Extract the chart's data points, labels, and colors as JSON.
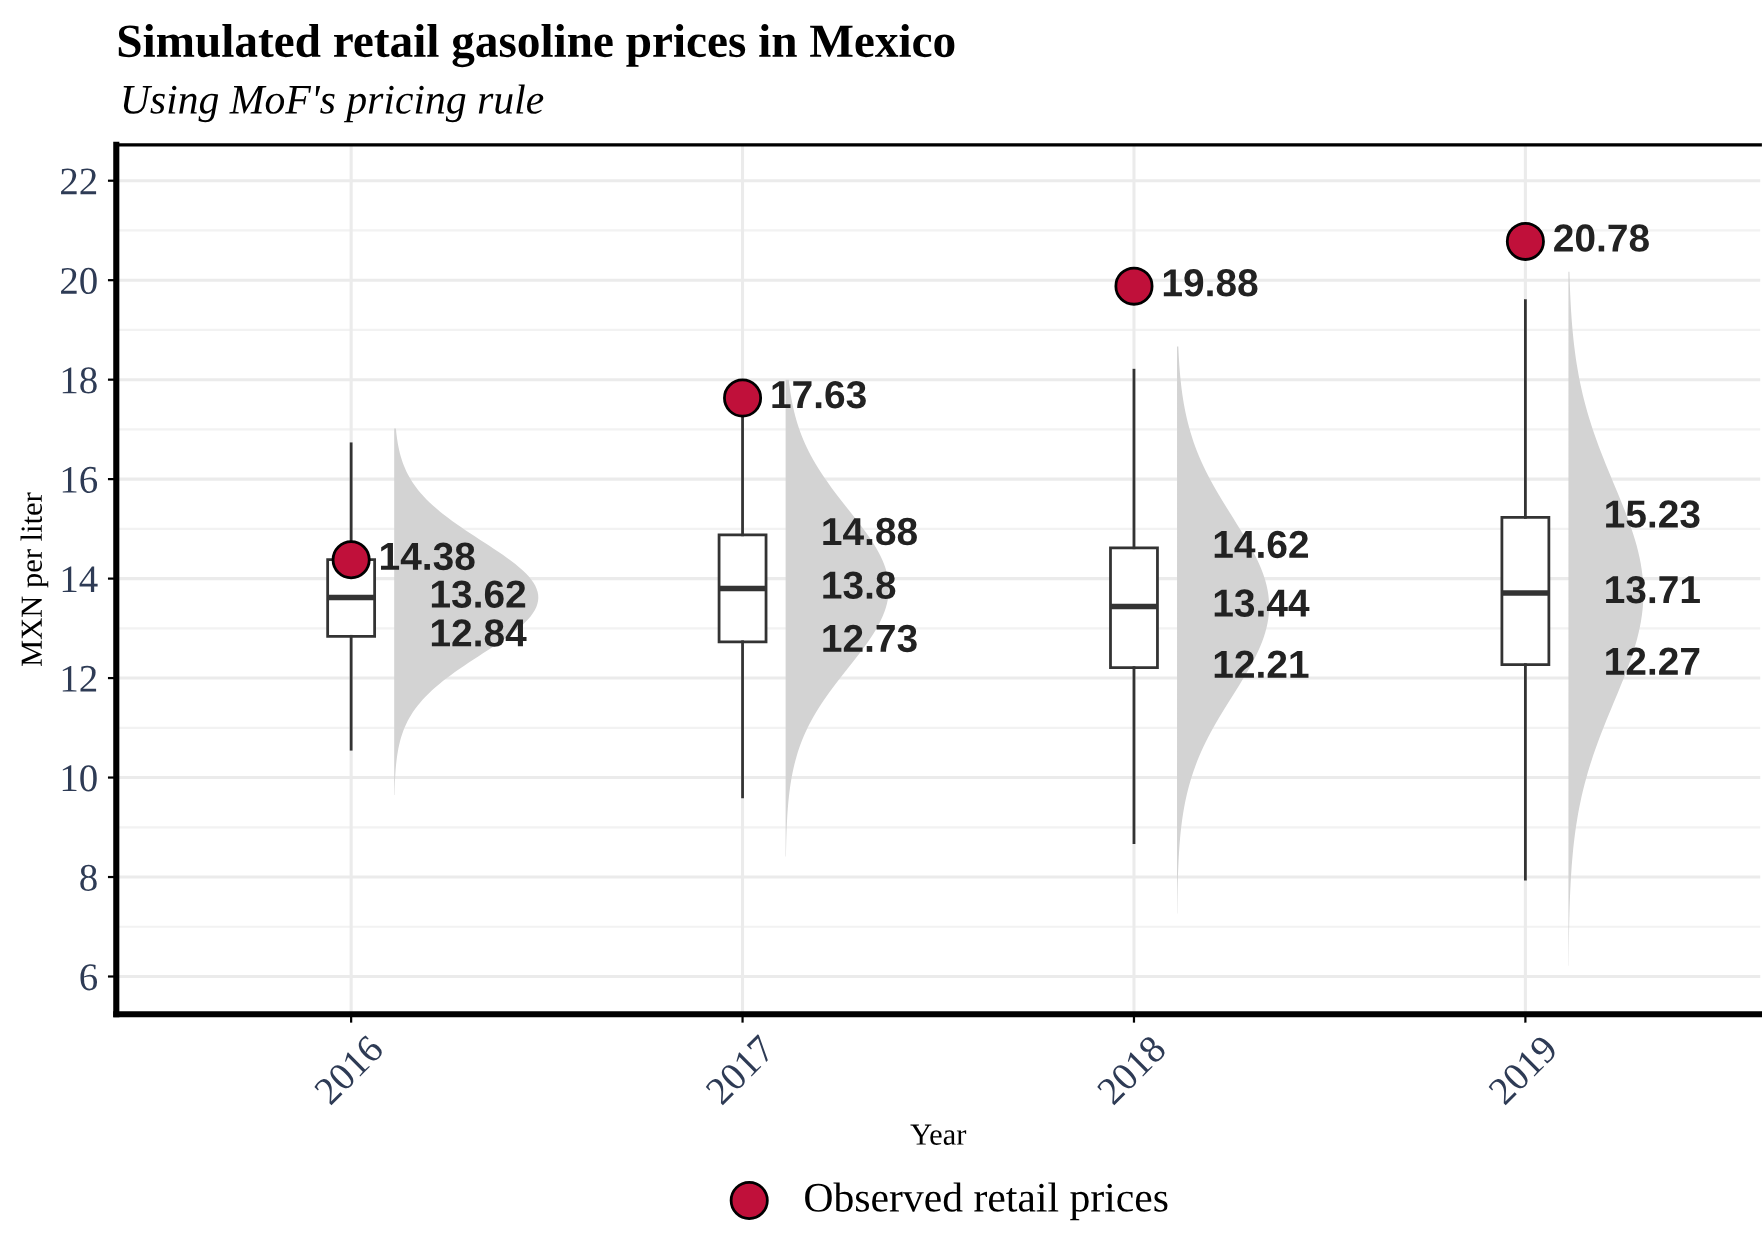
{
  "chart_data": {
    "type": "box",
    "title": "Simulated retail gasoline prices in Mexico",
    "subtitle": "Using MoF's pricing rule",
    "xlabel": "Year",
    "ylabel": "MXN per liter",
    "categories": [
      "2016",
      "2017",
      "2018",
      "2019"
    ],
    "boxes": [
      {
        "low": 10.57,
        "q1": 12.84,
        "median": 13.62,
        "q3": 14.38,
        "high": 16.71
      },
      {
        "low": 9.61,
        "q1": 12.73,
        "median": 13.8,
        "q3": 14.88,
        "high": 17.6
      },
      {
        "low": 8.69,
        "q1": 12.21,
        "median": 13.44,
        "q3": 14.62,
        "high": 18.19
      },
      {
        "low": 7.96,
        "q1": 12.27,
        "median": 13.71,
        "q3": 15.23,
        "high": 19.59
      }
    ],
    "series": [
      {
        "name": "Observed retail prices",
        "type": "scatter",
        "color": "#c0103a",
        "values": [
          14.38,
          17.63,
          19.88,
          20.78
        ],
        "value_labels": [
          "14.38",
          "17.63",
          "19.88",
          "20.78"
        ]
      }
    ],
    "annotations": [
      {
        "text": "13.62",
        "x": "2016",
        "y": 13.62
      },
      {
        "text": "12.84",
        "x": "2016",
        "y": 12.84
      },
      {
        "text": "14.88",
        "x": "2017",
        "y": 14.88
      },
      {
        "text": "13.8",
        "x": "2017",
        "y": 13.8
      },
      {
        "text": "12.73",
        "x": "2017",
        "y": 12.73
      },
      {
        "text": "14.62",
        "x": "2018",
        "y": 14.62
      },
      {
        "text": "13.44",
        "x": "2018",
        "y": 13.44
      },
      {
        "text": "12.21",
        "x": "2018",
        "y": 12.21
      },
      {
        "text": "15.23",
        "x": "2019",
        "y": 15.23
      },
      {
        "text": "13.71",
        "x": "2019",
        "y": 13.71
      },
      {
        "text": "12.27",
        "x": "2019",
        "y": 12.27
      }
    ],
    "ylim": [
      5.24,
      22.72
    ],
    "yticks": [
      6,
      8,
      10,
      12,
      14,
      16,
      18,
      20,
      22
    ],
    "grid": true,
    "legend": "bottom",
    "marker": "circle"
  }
}
